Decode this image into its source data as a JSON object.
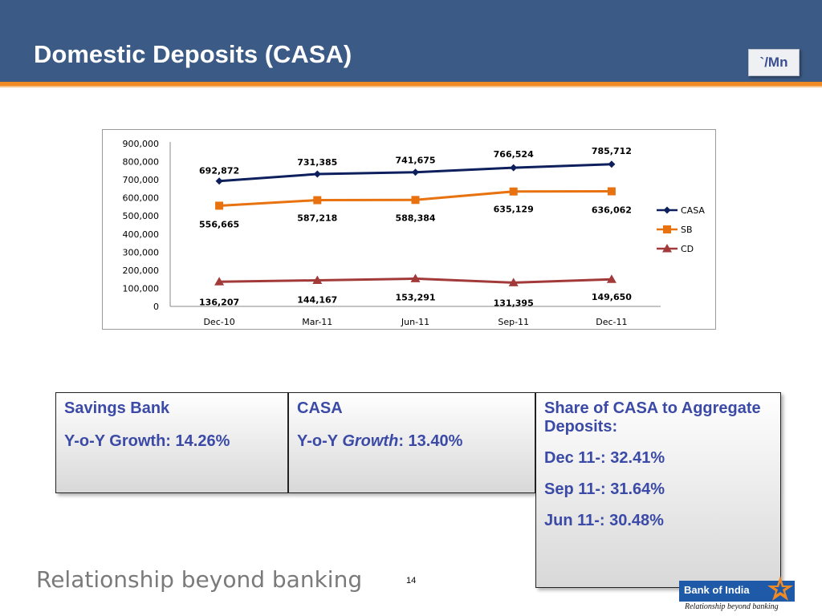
{
  "header": {
    "title": "Domestic Deposits (CASA)",
    "unit": "`/Mn"
  },
  "colors": {
    "header_bg": "#3b5a85",
    "accent": "#f08a24",
    "casa": "#0d1f5c",
    "sb": "#e8720f",
    "cd": "#a33a3a",
    "box_text": "#3b4aa6"
  },
  "chart_data": {
    "type": "line",
    "categories": [
      "Dec-10",
      "Mar-11",
      "Jun-11",
      "Sep-11",
      "Dec-11"
    ],
    "yticks": [
      "0",
      "100,000",
      "200,000",
      "300,000",
      "400,000",
      "500,000",
      "600,000",
      "700,000",
      "800,000",
      "900,000"
    ],
    "ylim": [
      0,
      900000
    ],
    "grid": false,
    "legend_position": "right",
    "series": [
      {
        "name": "CASA",
        "color": "#0d1f5c",
        "marker": "diamond",
        "values": [
          692872,
          731385,
          741675,
          766524,
          785712
        ],
        "labels": [
          "692,872",
          "731,385",
          "741,675",
          "766,524",
          "785,712"
        ]
      },
      {
        "name": "SB",
        "color": "#e8720f",
        "marker": "square",
        "values": [
          556665,
          587218,
          588384,
          635129,
          636062
        ],
        "labels": [
          "556,665",
          "587,218",
          "588,384",
          "635,129",
          "636,062"
        ]
      },
      {
        "name": "CD",
        "color": "#a33a3a",
        "marker": "triangle",
        "values": [
          136207,
          144167,
          153291,
          131395,
          149650
        ],
        "labels": [
          "136,207",
          "144,167",
          "153,291",
          "131,395",
          "149,650"
        ]
      }
    ]
  },
  "boxes": {
    "sb": {
      "heading": "Savings Bank",
      "growth_prefix": "Y-o-Y  Growth:  14.26%"
    },
    "casa": {
      "heading": "CASA",
      "growth_a": "Y-o-Y ",
      "growth_b": "Growth",
      "growth_c": ": 13.40%"
    },
    "share": {
      "heading": "Share of  CASA to Aggregate Deposits:",
      "items": [
        "Dec 11-: 32.41%",
        "Sep 11-: 31.64%",
        "Jun 11-: 30.48%"
      ]
    }
  },
  "footer": {
    "tagline": "Relationship beyond banking",
    "page": "14"
  },
  "logo": {
    "name": "Bank of India",
    "tagline": "Relationship beyond banking"
  }
}
